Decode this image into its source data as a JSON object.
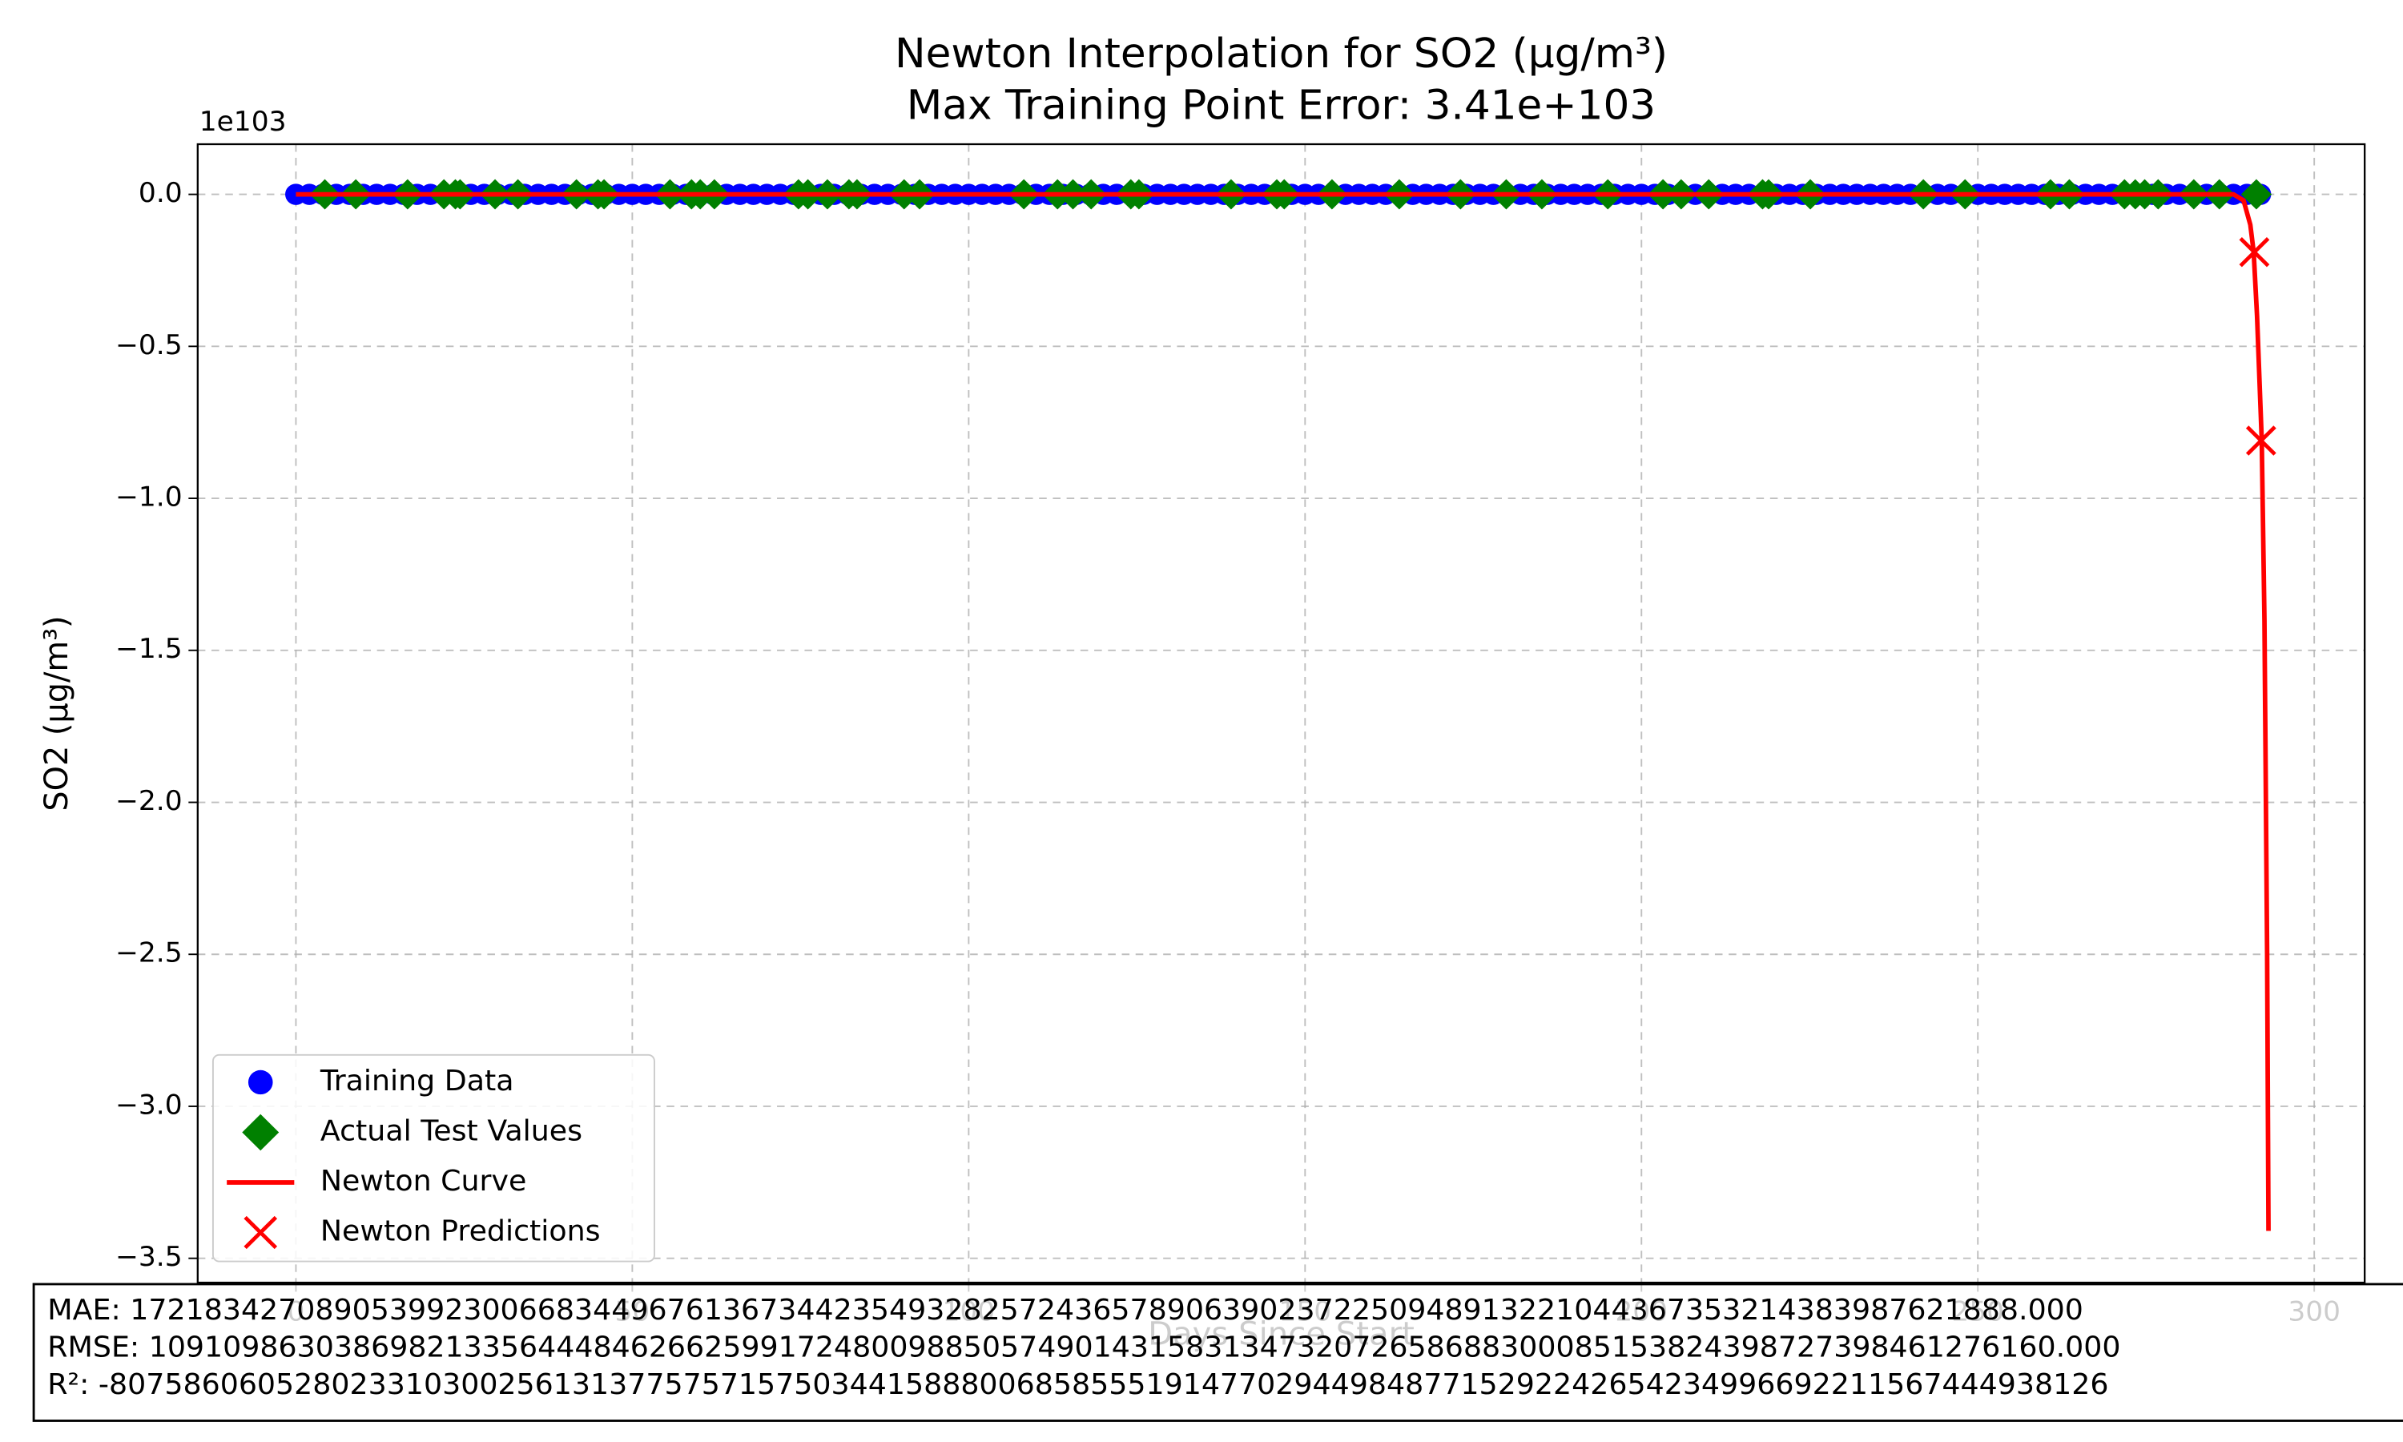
{
  "chart_data": {
    "type": "scatter",
    "title": "Newton Interpolation for SO2 (µg/m³)",
    "subtitle": "Max Training Point Error: 3.41e+103",
    "x_label": "Days Since Start",
    "y_label": "SO2 (µg/m³)",
    "y_offset_label": "1e103",
    "xlim": [
      -14.6,
      307.5
    ],
    "xticks": [
      0,
      50,
      100,
      150,
      200,
      250,
      300
    ],
    "ylim": [
      -3.58,
      0.165
    ],
    "yticks": [
      {
        "value": 0,
        "label": "0.0"
      },
      {
        "value": -0.5,
        "label": "−0.5"
      },
      {
        "value": -1,
        "label": "−1.0"
      },
      {
        "value": -1.5,
        "label": "−1.5"
      },
      {
        "value": -2,
        "label": "−2.0"
      },
      {
        "value": -2.5,
        "label": "−2.5"
      },
      {
        "value": -3,
        "label": "−3.0"
      },
      {
        "value": -3.5,
        "label": "−3.5"
      }
    ],
    "grid": true,
    "legend": "lower left",
    "series": [
      {
        "name": "Training Data",
        "color": "#0000ff",
        "marker": "circle",
        "x": [
          0,
          2,
          4,
          6,
          8,
          10,
          12,
          14,
          16,
          18,
          20,
          22,
          24,
          26,
          28,
          30,
          32,
          34,
          36,
          38,
          40,
          42,
          44,
          46,
          48,
          50,
          52,
          54,
          56,
          58,
          60,
          62,
          64,
          66,
          68,
          70,
          72,
          74,
          76,
          78,
          80,
          82,
          84,
          86,
          88,
          90,
          92,
          94,
          96,
          98,
          100,
          102,
          104,
          106,
          108,
          110,
          112,
          114,
          116,
          118,
          120,
          122,
          124,
          126,
          128,
          130,
          132,
          134,
          136,
          138,
          140,
          142,
          144,
          146,
          148,
          150,
          152,
          154,
          156,
          158,
          160,
          162,
          164,
          166,
          168,
          170,
          172,
          174,
          176,
          178,
          180,
          182,
          184,
          186,
          188,
          190,
          192,
          194,
          196,
          198,
          200,
          202,
          204,
          206,
          208,
          210,
          212,
          214,
          216,
          218,
          220,
          222,
          224,
          226,
          228,
          230,
          232,
          234,
          236,
          238,
          240,
          242,
          244,
          246,
          248,
          250,
          252,
          254,
          256,
          258,
          260,
          262,
          264,
          266,
          268,
          270,
          272,
          274,
          276,
          278,
          280,
          282,
          284,
          286,
          288,
          290,
          292
        ],
        "values": [
          0,
          0,
          0,
          0,
          0,
          0,
          0,
          0,
          0,
          0,
          0,
          0,
          0,
          0,
          0,
          0,
          0,
          0,
          0,
          0,
          0,
          0,
          0,
          0,
          0,
          0,
          0,
          0,
          0,
          0,
          0,
          0,
          0,
          0,
          0,
          0,
          0,
          0,
          0,
          0,
          0,
          0,
          0,
          0,
          0,
          0,
          0,
          0,
          0,
          0,
          0,
          0,
          0,
          0,
          0,
          0,
          0,
          0,
          0,
          0,
          0,
          0,
          0,
          0,
          0,
          0,
          0,
          0,
          0,
          0,
          0,
          0,
          0,
          0,
          0,
          0,
          0,
          0,
          0,
          0,
          0,
          0,
          0,
          0,
          0,
          0,
          0,
          0,
          0,
          0,
          0,
          0,
          0,
          0,
          0,
          0,
          0,
          0,
          0,
          0,
          0,
          0,
          0,
          0,
          0,
          0,
          0,
          0,
          0,
          0,
          0,
          0,
          0,
          0,
          0,
          0,
          0,
          0,
          0,
          0,
          0,
          0,
          0,
          0,
          0,
          0,
          0,
          0,
          0,
          0,
          0,
          0,
          0,
          0,
          0,
          0,
          0,
          0,
          0,
          0,
          0,
          0,
          0,
          0,
          0,
          0,
          0
        ]
      },
      {
        "name": "Actual Test Values",
        "color": "#008000",
        "marker": "diamond",
        "x": [
          4.3,
          8.9,
          16.6,
          22,
          23.7,
          24.4,
          29.6,
          33,
          41.7,
          44.9,
          45.8,
          55.6,
          58.8,
          60.1,
          62.2,
          74.7,
          76.1,
          79,
          82.2,
          83.4,
          90.4,
          92.7,
          108.2,
          113.2,
          115.5,
          118.2,
          124.1,
          125.3,
          139,
          145.8,
          146.9,
          154,
          164,
          173.1,
          179.9,
          185.2,
          195,
          203.2,
          205.9,
          210,
          218,
          218.9,
          225.1,
          241.9,
          248.1,
          260.8,
          263.6,
          271.8,
          273.4,
          274.8,
          276.8,
          282.1,
          285.9,
          291.4
        ],
        "values": [
          0,
          0,
          0,
          0,
          0,
          0,
          0,
          0,
          0,
          0,
          0,
          0,
          0,
          0,
          0,
          0,
          0,
          0,
          0,
          0,
          0,
          0,
          0,
          0,
          0,
          0,
          0,
          0,
          0,
          0,
          0,
          0,
          0,
          0,
          0,
          0,
          0,
          0,
          0,
          0,
          0,
          0,
          0,
          0,
          0,
          0,
          0,
          0,
          0,
          0,
          0,
          0,
          0,
          0
        ]
      },
      {
        "name": "Newton Curve",
        "color": "#ff0000",
        "marker": "line",
        "x": [
          0,
          100,
          200,
          288,
          289.5,
          290.5,
          291,
          291.5,
          292.2,
          292.6,
          293,
          293.2
        ],
        "values": [
          0,
          0,
          0,
          0,
          -0.02,
          -0.1,
          -0.19,
          -0.4,
          -0.81,
          -1.4,
          -2.5,
          -3.41
        ]
      },
      {
        "name": "Newton Predictions",
        "color": "#ff0000",
        "marker": "x",
        "x": [
          291.1,
          292.1
        ],
        "values": [
          -0.19,
          -0.81
        ]
      }
    ],
    "metrics": [
      "MAE: 172183427089053992300668344967613673442354932825724365789063902372250948913221044367353214383987621888.000",
      "RMSE: 1091098630386982133564448462662599172480098850574901431583134732072658688300085153824398727398461276160.000",
      "R²: -807586060528023310300256131377575715750344158880068585551914770294498487715292242654234996692211567444938126"
    ]
  }
}
